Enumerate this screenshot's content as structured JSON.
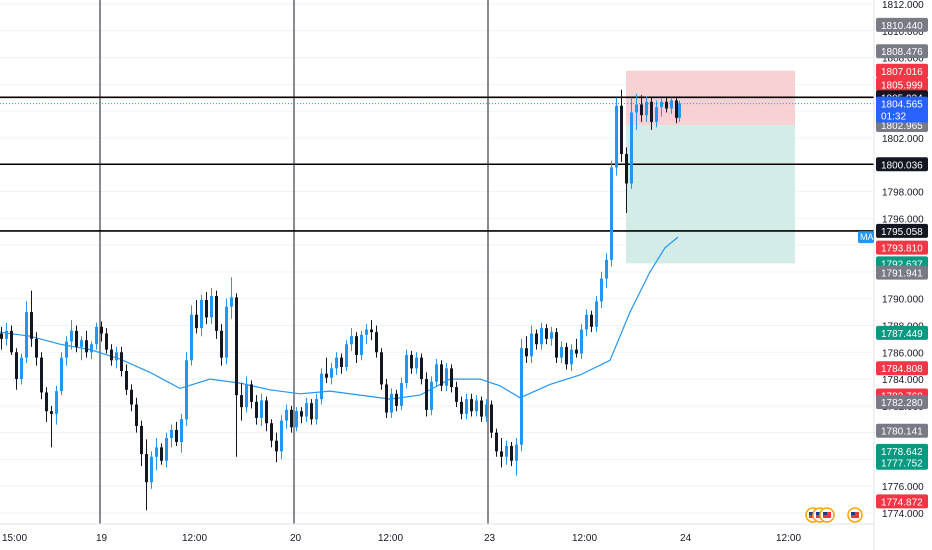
{
  "colors": {
    "background": "#ffffff",
    "grid": "#f0f3fa",
    "separator": "#131722",
    "axis_text": "#131722",
    "candle_up": "#2196f3",
    "candle_down": "#131722",
    "ma_line": "#2196f3",
    "level_line": "#000000",
    "stop_zone": "#f7c9cc",
    "target_zone": "#cce9e4",
    "label_red": "#f23645",
    "label_green": "#089981",
    "label_black": "#131722",
    "label_gray": "#787b86",
    "label_blue": "#2962ff",
    "current_price": "#2196f3"
  },
  "price_axis": {
    "tick_labels": [
      "1812.000",
      "1810.000",
      "1808.000",
      "1806.000",
      "1804.000",
      "1802.000",
      "1800.000",
      "1798.000",
      "1796.000",
      "1794.000",
      "1792.000",
      "1790.000",
      "1788.000",
      "1786.000",
      "1784.000",
      "1782.000",
      "1780.000",
      "1778.000",
      "1776.000",
      "1774.000"
    ],
    "ma_tag": "MA"
  },
  "time_axis": {
    "labels": [
      "15:00",
      "19",
      "12:00",
      "20",
      "12:00",
      "23",
      "12:00",
      "24",
      "12:00"
    ]
  },
  "price_labels": [
    {
      "text": "1810.440",
      "price": 1810.44,
      "color": "gray"
    },
    {
      "text": "1808.476",
      "price": 1808.476,
      "color": "gray"
    },
    {
      "text": "1807.016",
      "price": 1807.016,
      "color": "red"
    },
    {
      "text": "1805.999",
      "price": 1805.999,
      "color": "red"
    },
    {
      "text": "1805.034",
      "price": 1805.034,
      "color": "black"
    },
    {
      "text": "1802.965",
      "price": 1802.965,
      "color": "gray"
    },
    {
      "text": "1800.036",
      "price": 1800.036,
      "color": "black"
    },
    {
      "text": "1795.058",
      "price": 1795.058,
      "color": "black"
    },
    {
      "text": "1793.810",
      "price": 1793.81,
      "color": "red"
    },
    {
      "text": "1792.637",
      "price": 1792.637,
      "color": "green"
    },
    {
      "text": "1791.941",
      "price": 1791.941,
      "color": "gray"
    },
    {
      "text": "1787.449",
      "price": 1787.449,
      "color": "green"
    },
    {
      "text": "1784.808",
      "price": 1784.808,
      "color": "red"
    },
    {
      "text": "1782.768",
      "price": 1782.768,
      "color": "red"
    },
    {
      "text": "1782.280",
      "price": 1782.28,
      "color": "gray"
    },
    {
      "text": "1780.141",
      "price": 1780.141,
      "color": "gray"
    },
    {
      "text": "1778.642",
      "price": 1778.642,
      "color": "green"
    },
    {
      "text": "1777.752",
      "price": 1777.752,
      "color": "green"
    },
    {
      "text": "1774.872",
      "price": 1774.872,
      "color": "red"
    }
  ],
  "current_price": {
    "value": 1804.565,
    "label": "1804.565",
    "countdown": "01:32"
  },
  "chart_data": {
    "type": "candlestick",
    "symbol": "",
    "ylim": [
      1773.0,
      1812.5
    ],
    "x_axis_labels": [
      "15:00",
      "19",
      "12:00",
      "20",
      "12:00",
      "23",
      "12:00",
      "24",
      "12:00"
    ],
    "horizontal_levels": [
      1805.034,
      1800.036,
      1795.058
    ],
    "position": {
      "stop_top": 1807.016,
      "entry": 1805.034,
      "entry_low": 1802.965,
      "target": 1792.637
    },
    "ma_series": [
      [
        0,
        1787.5
      ],
      [
        30,
        1787.2
      ],
      [
        60,
        1786.6
      ],
      [
        90,
        1786.2
      ],
      [
        120,
        1785.5
      ],
      [
        150,
        1784.5
      ],
      [
        180,
        1783.3
      ],
      [
        210,
        1784.0
      ],
      [
        240,
        1783.7
      ],
      [
        270,
        1783.2
      ],
      [
        300,
        1782.9
      ],
      [
        330,
        1783.1
      ],
      [
        360,
        1782.8
      ],
      [
        390,
        1782.5
      ],
      [
        420,
        1782.8
      ],
      [
        450,
        1784.0
      ],
      [
        480,
        1784.0
      ],
      [
        500,
        1783.5
      ],
      [
        520,
        1782.6
      ],
      [
        550,
        1783.6
      ],
      [
        580,
        1784.3
      ],
      [
        610,
        1785.4
      ],
      [
        630,
        1789.0
      ],
      [
        650,
        1792.0
      ],
      [
        665,
        1793.8
      ],
      [
        678,
        1794.6
      ]
    ],
    "candles": [
      [
        0,
        1787.4,
        1787.9,
        1786.2,
        1787.0
      ],
      [
        5,
        1787.0,
        1788.2,
        1786.5,
        1787.6
      ],
      [
        10,
        1787.6,
        1788.0,
        1785.8,
        1786.0
      ],
      [
        15,
        1786.0,
        1786.3,
        1783.2,
        1784.0
      ],
      [
        20,
        1784.0,
        1785.9,
        1783.6,
        1785.6
      ],
      [
        25,
        1785.6,
        1789.8,
        1785.2,
        1789.0
      ],
      [
        30,
        1789.0,
        1790.6,
        1786.4,
        1787.0
      ],
      [
        35,
        1787.0,
        1787.5,
        1785.0,
        1785.6
      ],
      [
        40,
        1785.6,
        1786.0,
        1782.5,
        1783.0
      ],
      [
        45,
        1783.0,
        1783.4,
        1780.8,
        1781.6
      ],
      [
        50,
        1781.6,
        1782.0,
        1778.9,
        1781.4
      ],
      [
        55,
        1781.4,
        1783.5,
        1780.6,
        1783.1
      ],
      [
        60,
        1783.1,
        1786.0,
        1782.8,
        1785.6
      ],
      [
        65,
        1785.6,
        1787.2,
        1785.0,
        1786.8
      ],
      [
        70,
        1786.8,
        1788.4,
        1786.2,
        1787.6
      ],
      [
        75,
        1787.6,
        1788.0,
        1786.0,
        1786.4
      ],
      [
        80,
        1786.4,
        1787.2,
        1785.4,
        1786.9
      ],
      [
        85,
        1786.9,
        1787.6,
        1785.6,
        1786.0
      ],
      [
        90,
        1786.0,
        1786.8,
        1785.5,
        1786.6
      ],
      [
        95,
        1786.6,
        1788.2,
        1786.2,
        1787.9
      ],
      [
        100,
        1787.9,
        1788.3,
        1786.8,
        1787.4
      ],
      [
        105,
        1787.4,
        1787.8,
        1785.9,
        1786.2
      ],
      [
        110,
        1786.2,
        1786.6,
        1785.0,
        1785.4
      ],
      [
        115,
        1785.4,
        1786.4,
        1784.8,
        1786.0
      ],
      [
        120,
        1786.0,
        1786.4,
        1784.2,
        1784.6
      ],
      [
        125,
        1784.6,
        1785.1,
        1782.8,
        1783.2
      ],
      [
        130,
        1783.2,
        1783.6,
        1781.6,
        1782.1
      ],
      [
        135,
        1782.1,
        1782.6,
        1780.0,
        1780.5
      ],
      [
        140,
        1780.5,
        1780.9,
        1777.5,
        1778.4
      ],
      [
        145,
        1778.4,
        1779.5,
        1774.2,
        1776.3
      ],
      [
        150,
        1776.3,
        1778.6,
        1775.8,
        1778.2
      ],
      [
        155,
        1778.2,
        1779.6,
        1777.2,
        1778.9
      ],
      [
        160,
        1778.9,
        1779.2,
        1777.6,
        1777.9
      ],
      [
        165,
        1777.9,
        1780.0,
        1777.4,
        1779.6
      ],
      [
        170,
        1779.6,
        1780.6,
        1778.9,
        1780.2
      ],
      [
        175,
        1780.2,
        1780.8,
        1779.0,
        1779.3
      ],
      [
        180,
        1779.3,
        1781.4,
        1778.5,
        1781.0
      ],
      [
        185,
        1781.0,
        1786.0,
        1780.5,
        1785.4
      ],
      [
        190,
        1785.4,
        1789.5,
        1785.0,
        1788.8
      ],
      [
        195,
        1788.8,
        1789.9,
        1787.4,
        1787.8
      ],
      [
        200,
        1787.8,
        1790.3,
        1787.2,
        1789.9
      ],
      [
        205,
        1789.9,
        1790.5,
        1788.1,
        1788.6
      ],
      [
        210,
        1788.6,
        1790.8,
        1788.1,
        1790.2
      ],
      [
        215,
        1790.2,
        1790.6,
        1787.0,
        1787.6
      ],
      [
        220,
        1787.6,
        1788.1,
        1785.0,
        1785.6
      ],
      [
        225,
        1785.6,
        1790.0,
        1785.1,
        1789.4
      ],
      [
        230,
        1789.4,
        1791.6,
        1788.5,
        1790.1
      ],
      [
        235,
        1790.1,
        1790.4,
        1778.2,
        1782.8
      ],
      [
        240,
        1782.8,
        1783.7,
        1780.9,
        1781.9
      ],
      [
        245,
        1781.9,
        1784.2,
        1781.5,
        1783.6
      ],
      [
        250,
        1783.6,
        1783.9,
        1781.8,
        1782.3
      ],
      [
        255,
        1782.3,
        1782.8,
        1780.6,
        1781.1
      ],
      [
        260,
        1781.1,
        1782.9,
        1780.5,
        1782.4
      ],
      [
        265,
        1782.4,
        1782.7,
        1780.1,
        1780.7
      ],
      [
        270,
        1780.7,
        1781.0,
        1778.9,
        1779.4
      ],
      [
        275,
        1779.4,
        1780.0,
        1777.8,
        1778.6
      ],
      [
        280,
        1778.6,
        1781.3,
        1778.0,
        1780.9
      ],
      [
        285,
        1780.9,
        1782.1,
        1780.3,
        1781.7
      ],
      [
        290,
        1781.7,
        1782.0,
        1780.0,
        1780.4
      ],
      [
        295,
        1780.4,
        1781.9,
        1780.1,
        1781.6
      ],
      [
        300,
        1781.6,
        1781.9,
        1780.7,
        1781.2
      ],
      [
        305,
        1781.2,
        1782.6,
        1780.8,
        1782.2
      ],
      [
        310,
        1782.2,
        1782.5,
        1780.6,
        1781.0
      ],
      [
        315,
        1781.0,
        1782.9,
        1780.6,
        1782.5
      ],
      [
        320,
        1782.5,
        1784.8,
        1782.1,
        1784.4
      ],
      [
        325,
        1784.4,
        1785.6,
        1783.7,
        1784.1
      ],
      [
        330,
        1784.1,
        1785.2,
        1783.6,
        1784.8
      ],
      [
        335,
        1784.8,
        1786.0,
        1784.3,
        1785.6
      ],
      [
        340,
        1785.6,
        1785.9,
        1784.4,
        1784.9
      ],
      [
        345,
        1784.9,
        1786.9,
        1784.6,
        1786.6
      ],
      [
        350,
        1786.6,
        1787.8,
        1786.1,
        1787.2
      ],
      [
        355,
        1787.2,
        1787.5,
        1785.2,
        1785.8
      ],
      [
        360,
        1785.8,
        1787.6,
        1785.4,
        1787.3
      ],
      [
        365,
        1787.3,
        1788.1,
        1786.6,
        1787.7
      ],
      [
        370,
        1787.7,
        1788.4,
        1786.9,
        1787.5
      ],
      [
        375,
        1787.5,
        1788.0,
        1785.6,
        1786.0
      ],
      [
        380,
        1786.0,
        1786.3,
        1783.2,
        1783.6
      ],
      [
        385,
        1783.6,
        1784.0,
        1781.1,
        1781.5
      ],
      [
        390,
        1781.5,
        1783.3,
        1781.1,
        1782.9
      ],
      [
        395,
        1782.9,
        1783.2,
        1781.6,
        1782.0
      ],
      [
        400,
        1782.0,
        1784.1,
        1781.7,
        1783.7
      ],
      [
        405,
        1783.7,
        1786.2,
        1783.3,
        1785.8
      ],
      [
        410,
        1785.8,
        1786.1,
        1784.4,
        1784.8
      ],
      [
        415,
        1784.8,
        1786.0,
        1784.4,
        1785.6
      ],
      [
        420,
        1785.6,
        1785.9,
        1783.6,
        1784.0
      ],
      [
        425,
        1784.0,
        1784.5,
        1781.2,
        1781.7
      ],
      [
        430,
        1781.7,
        1784.2,
        1781.3,
        1783.8
      ],
      [
        435,
        1783.8,
        1785.5,
        1783.4,
        1785.1
      ],
      [
        440,
        1785.1,
        1785.4,
        1783.1,
        1783.5
      ],
      [
        445,
        1783.5,
        1785.2,
        1783.1,
        1784.8
      ],
      [
        450,
        1784.8,
        1785.1,
        1783.0,
        1783.4
      ],
      [
        455,
        1783.4,
        1783.8,
        1781.9,
        1782.3
      ],
      [
        460,
        1782.3,
        1782.7,
        1781.0,
        1781.4
      ],
      [
        465,
        1781.4,
        1782.9,
        1781.0,
        1782.5
      ],
      [
        470,
        1782.5,
        1782.9,
        1781.2,
        1781.6
      ],
      [
        475,
        1781.6,
        1782.8,
        1781.2,
        1782.4
      ],
      [
        480,
        1782.4,
        1782.7,
        1780.8,
        1781.2
      ],
      [
        485,
        1781.2,
        1782.5,
        1780.8,
        1782.1
      ],
      [
        490,
        1782.1,
        1782.4,
        1779.6,
        1780.0
      ],
      [
        495,
        1780.0,
        1780.3,
        1778.2,
        1778.6
      ],
      [
        500,
        1778.6,
        1779.6,
        1777.4,
        1778.2
      ],
      [
        505,
        1778.2,
        1779.4,
        1777.6,
        1779.0
      ],
      [
        510,
        1779.0,
        1779.3,
        1777.5,
        1777.9
      ],
      [
        515,
        1777.9,
        1779.6,
        1776.8,
        1779.1
      ],
      [
        520,
        1779.1,
        1787.0,
        1778.6,
        1786.3
      ],
      [
        525,
        1786.3,
        1787.2,
        1785.2,
        1785.7
      ],
      [
        530,
        1785.7,
        1788.0,
        1785.2,
        1787.4
      ],
      [
        535,
        1787.4,
        1787.7,
        1786.2,
        1786.6
      ],
      [
        540,
        1786.6,
        1788.2,
        1786.2,
        1787.8
      ],
      [
        545,
        1787.8,
        1788.1,
        1786.6,
        1787.0
      ],
      [
        550,
        1787.0,
        1787.9,
        1786.5,
        1787.5
      ],
      [
        555,
        1787.5,
        1787.8,
        1785.2,
        1785.6
      ],
      [
        560,
        1785.6,
        1786.8,
        1785.2,
        1786.4
      ],
      [
        565,
        1786.4,
        1786.7,
        1784.7,
        1785.1
      ],
      [
        570,
        1785.1,
        1786.6,
        1784.6,
        1786.2
      ],
      [
        575,
        1786.2,
        1787.0,
        1785.6,
        1785.9
      ],
      [
        580,
        1785.9,
        1788.1,
        1785.5,
        1787.7
      ],
      [
        585,
        1787.7,
        1789.2,
        1787.2,
        1788.8
      ],
      [
        590,
        1788.8,
        1789.1,
        1787.5,
        1787.9
      ],
      [
        595,
        1787.9,
        1790.2,
        1787.5,
        1789.8
      ],
      [
        600,
        1789.8,
        1792.0,
        1789.3,
        1791.5
      ],
      [
        605,
        1791.5,
        1793.4,
        1790.8,
        1792.9
      ],
      [
        610,
        1792.9,
        1800.3,
        1792.4,
        1799.8
      ],
      [
        615,
        1799.8,
        1805.0,
        1799.2,
        1804.4
      ],
      [
        620,
        1804.4,
        1805.6,
        1800.2,
        1800.8
      ],
      [
        625,
        1800.8,
        1801.3,
        1796.4,
        1798.6
      ],
      [
        630,
        1798.6,
        1805.0,
        1798.2,
        1803.9
      ],
      [
        635,
        1803.9,
        1805.3,
        1802.6,
        1804.5
      ],
      [
        640,
        1804.5,
        1805.2,
        1803.2,
        1803.7
      ],
      [
        645,
        1803.7,
        1805.1,
        1803.2,
        1804.7
      ],
      [
        650,
        1804.7,
        1805.0,
        1802.6,
        1803.2
      ],
      [
        655,
        1803.2,
        1804.8,
        1802.8,
        1804.3
      ],
      [
        660,
        1804.3,
        1805.0,
        1803.6,
        1804.7
      ],
      [
        665,
        1804.7,
        1805.1,
        1803.9,
        1804.2
      ],
      [
        670,
        1804.2,
        1805.0,
        1803.8,
        1804.8
      ],
      [
        675,
        1804.8,
        1805.0,
        1803.1,
        1803.5
      ],
      [
        678,
        1803.5,
        1804.8,
        1803.2,
        1804.565
      ]
    ]
  }
}
